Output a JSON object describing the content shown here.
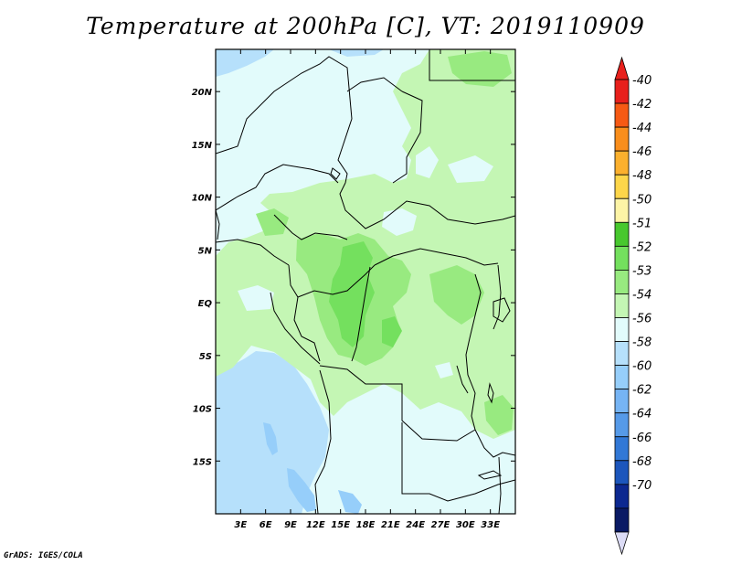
{
  "title": "Temperature at 200hPa [C], VT: 2019110909",
  "credit": "GrADS: IGES/COLA",
  "map": {
    "lon_range": [
      0,
      36
    ],
    "lat_range": [
      -20,
      24
    ],
    "lon_ticks": [
      "3E",
      "6E",
      "9E",
      "12E",
      "15E",
      "18E",
      "21E",
      "24E",
      "27E",
      "30E",
      "33E"
    ],
    "lat_ticks": [
      "20N",
      "15N",
      "10N",
      "5N",
      "EQ",
      "5S",
      "10S",
      "15S"
    ]
  },
  "colorbar": {
    "labels": [
      "-40",
      "-42",
      "-44",
      "-46",
      "-48",
      "-50",
      "-51",
      "-52",
      "-53",
      "-54",
      "-56",
      "-58",
      "-60",
      "-62",
      "-64",
      "-66",
      "-68",
      "-70"
    ],
    "colors": [
      "#e8201c",
      "#f65a14",
      "#f98e1c",
      "#fbb02e",
      "#fdd64a",
      "#fdf4a6",
      "#48c82e",
      "#74e05e",
      "#98ea80",
      "#c4f6b4",
      "#e2fbfb",
      "#b6e0fb",
      "#96cefa",
      "#76b4f4",
      "#569ae8",
      "#3278d6",
      "#1c56bc",
      "#0c2890",
      "#0a1a64"
    ],
    "top_color": "#e8201c",
    "bottom_color": "#dcdcf6"
  }
}
